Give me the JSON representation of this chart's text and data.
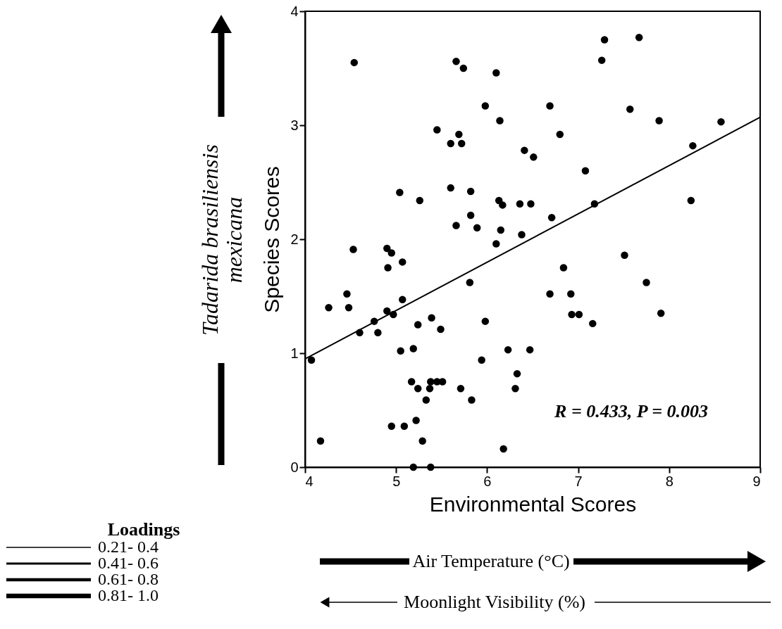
{
  "chart_data": {
    "type": "scatter",
    "xlabel": "Environmental Scores",
    "ylabel": "Species Scores",
    "xlim": [
      4,
      9
    ],
    "ylim": [
      0,
      4
    ],
    "xticks": [
      4,
      5,
      6,
      7,
      8,
      9
    ],
    "yticks": [
      0,
      1,
      2,
      3,
      4
    ],
    "grid": false,
    "marker": "circle",
    "series": [
      {
        "type": "scatter",
        "color": "#000000",
        "x": [
          4.54,
          5.66,
          5.74,
          6.1,
          5.98,
          6.14,
          5.45,
          5.69,
          5.6,
          5.72,
          5.04,
          5.26,
          5.6,
          5.82,
          6.13,
          6.17,
          5.82,
          5.66,
          5.89,
          6.15,
          6.36,
          7.29,
          7.67,
          7.26,
          6.69,
          7.57,
          7.89,
          8.57,
          6.8,
          6.41,
          6.51,
          8.26,
          7.08,
          6.48,
          7.18,
          8.24,
          6.71,
          6.38,
          4.53,
          4.9,
          4.95,
          4.91,
          5.07,
          6.1,
          5.81,
          4.46,
          4.48,
          4.26,
          5.07,
          4.9,
          4.97,
          4.76,
          4.6,
          4.8,
          5.39,
          5.24,
          5.49,
          5.98,
          5.05,
          5.19,
          4.07,
          5.94,
          6.23,
          6.33,
          6.31,
          5.17,
          5.24,
          5.37,
          5.38,
          5.45,
          5.51,
          5.71,
          5.33,
          5.83,
          4.95,
          5.09,
          5.22,
          5.29,
          4.17,
          6.18,
          5.19,
          5.38,
          7.51,
          6.84,
          7.75,
          6.69,
          6.92,
          6.93,
          7.01,
          7.16,
          7.91,
          6.47
        ],
        "values": [
          3.55,
          3.56,
          3.5,
          3.46,
          3.17,
          3.04,
          2.96,
          2.92,
          2.84,
          2.84,
          2.41,
          2.34,
          2.45,
          2.42,
          2.34,
          2.3,
          2.21,
          2.12,
          2.1,
          2.08,
          2.31,
          3.75,
          3.77,
          3.57,
          3.17,
          3.14,
          3.04,
          3.03,
          2.92,
          2.78,
          2.72,
          2.82,
          2.6,
          2.31,
          2.31,
          2.34,
          2.19,
          2.04,
          1.91,
          1.92,
          1.88,
          1.75,
          1.8,
          1.96,
          1.62,
          1.52,
          1.4,
          1.4,
          1.47,
          1.37,
          1.34,
          1.28,
          1.18,
          1.18,
          1.31,
          1.25,
          1.21,
          1.28,
          1.02,
          1.04,
          0.94,
          0.94,
          1.03,
          0.82,
          0.69,
          0.75,
          0.69,
          0.69,
          0.75,
          0.75,
          0.75,
          0.69,
          0.59,
          0.59,
          0.36,
          0.36,
          0.41,
          0.23,
          0.23,
          0.16,
          0.0,
          0.0,
          1.86,
          1.75,
          1.62,
          1.52,
          1.52,
          1.34,
          1.34,
          1.26,
          1.35,
          1.03
        ]
      },
      {
        "type": "line",
        "marker": "none",
        "color": "#000000",
        "x": [
          4,
          9
        ],
        "values": [
          0.95,
          3.07
        ]
      }
    ],
    "annotations": [
      "R = 0.433, P = 0.003",
      "Tadarida brasiliensis\nmexicana",
      "Loadings",
      "0.21- 0.4",
      "0.41- 0.6",
      "0.61- 0.8",
      "0.81- 1.0",
      "Air Temperature (°C)",
      "Moonlight Visibility (%)"
    ]
  }
}
